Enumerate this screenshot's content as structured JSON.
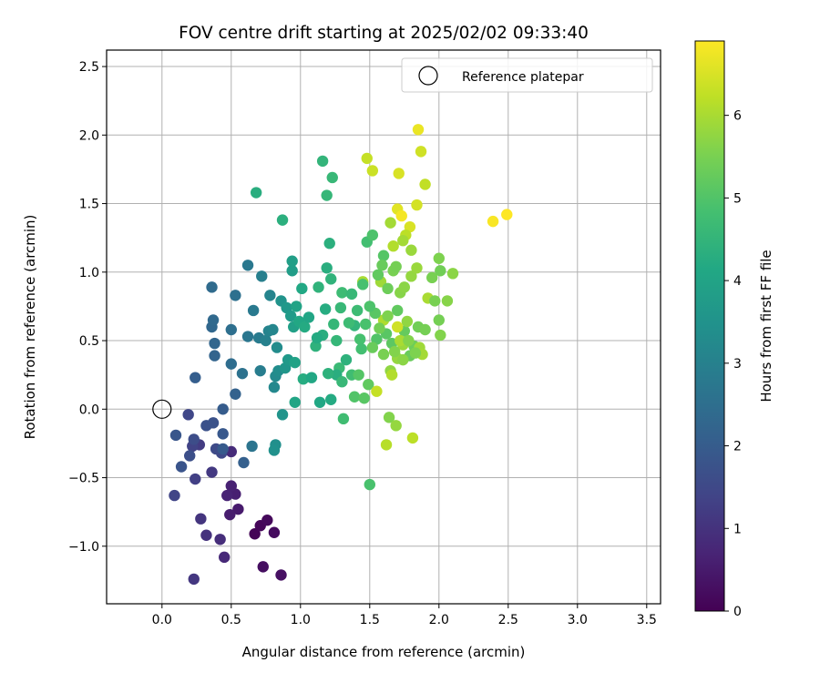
{
  "chart_data": {
    "type": "scatter",
    "title": "FOV centre drift starting at 2025/02/02 09:33:40",
    "xlabel": "Angular distance from reference (arcmin)",
    "ylabel": "Rotation from reference (arcmin)",
    "xlim": [
      -0.4,
      3.6
    ],
    "ylim": [
      -1.42,
      2.62
    ],
    "xticks": [
      0.0,
      0.5,
      1.0,
      1.5,
      2.0,
      2.5,
      3.0,
      3.5
    ],
    "xtick_labels": [
      "0.0",
      "0.5",
      "1.0",
      "1.5",
      "2.0",
      "2.5",
      "3.0",
      "3.5"
    ],
    "yticks": [
      -1.0,
      -0.5,
      0.0,
      0.5,
      1.0,
      1.5,
      2.0,
      2.5
    ],
    "ytick_labels": [
      "−1.0",
      "−0.5",
      "0.0",
      "0.5",
      "1.0",
      "1.5",
      "2.0",
      "2.5"
    ],
    "grid": true,
    "legend": {
      "position": "top-right",
      "entries": [
        "Reference platepar"
      ]
    },
    "reference_point": {
      "x": 0.0,
      "y": 0.0,
      "label": "Reference platepar"
    },
    "colorbar": {
      "label": "Hours from first FF file",
      "min": 0,
      "max": 6.9,
      "ticks": [
        0,
        1,
        2,
        3,
        4,
        5,
        6
      ],
      "tick_labels": [
        "0",
        "1",
        "2",
        "3",
        "4",
        "5",
        "6"
      ],
      "colormap": "viridis"
    },
    "points": [
      {
        "x": 0.67,
        "y": -0.91,
        "t": 0.05
      },
      {
        "x": 0.71,
        "y": -0.85,
        "t": 0.1
      },
      {
        "x": 0.76,
        "y": -0.81,
        "t": 0.15
      },
      {
        "x": 0.81,
        "y": -0.9,
        "t": 0.2
      },
      {
        "x": 0.73,
        "y": -1.15,
        "t": 0.25
      },
      {
        "x": 0.86,
        "y": -1.21,
        "t": 0.3
      },
      {
        "x": 0.55,
        "y": -0.73,
        "t": 0.5
      },
      {
        "x": 0.49,
        "y": -0.77,
        "t": 0.55
      },
      {
        "x": 0.53,
        "y": -0.62,
        "t": 0.6
      },
      {
        "x": 0.5,
        "y": -0.56,
        "t": 0.65
      },
      {
        "x": 0.47,
        "y": -0.63,
        "t": 0.7
      },
      {
        "x": 0.45,
        "y": -1.08,
        "t": 0.8
      },
      {
        "x": 0.5,
        "y": -0.31,
        "t": 0.85
      },
      {
        "x": 0.42,
        "y": -0.95,
        "t": 0.9
      },
      {
        "x": 0.32,
        "y": -0.92,
        "t": 1.0
      },
      {
        "x": 0.28,
        "y": -0.8,
        "t": 1.05
      },
      {
        "x": 0.23,
        "y": -1.24,
        "t": 1.1
      },
      {
        "x": 0.36,
        "y": -0.46,
        "t": 1.15
      },
      {
        "x": 0.27,
        "y": -0.26,
        "t": 1.2
      },
      {
        "x": 0.24,
        "y": -0.51,
        "t": 1.3
      },
      {
        "x": 0.22,
        "y": -0.27,
        "t": 1.35
      },
      {
        "x": 0.09,
        "y": -0.63,
        "t": 1.4
      },
      {
        "x": 0.19,
        "y": -0.04,
        "t": 1.45
      },
      {
        "x": 0.43,
        "y": -0.32,
        "t": 1.5
      },
      {
        "x": 0.39,
        "y": -0.29,
        "t": 1.55
      },
      {
        "x": 0.23,
        "y": -0.22,
        "t": 1.6
      },
      {
        "x": 0.2,
        "y": -0.34,
        "t": 1.65
      },
      {
        "x": 0.32,
        "y": -0.12,
        "t": 1.7
      },
      {
        "x": 0.37,
        "y": -0.1,
        "t": 1.75
      },
      {
        "x": 0.14,
        "y": -0.42,
        "t": 1.8
      },
      {
        "x": 0.1,
        "y": -0.19,
        "t": 1.85
      },
      {
        "x": 0.44,
        "y": -0.18,
        "t": 1.9
      },
      {
        "x": 0.44,
        "y": -0.29,
        "t": 1.95
      },
      {
        "x": 0.44,
        "y": 0.0,
        "t": 2.0
      },
      {
        "x": 0.24,
        "y": 0.23,
        "t": 2.05
      },
      {
        "x": 0.59,
        "y": -0.39,
        "t": 2.1
      },
      {
        "x": 0.53,
        "y": 0.11,
        "t": 2.15
      },
      {
        "x": 0.38,
        "y": 0.39,
        "t": 2.2
      },
      {
        "x": 0.38,
        "y": 0.48,
        "t": 2.25
      },
      {
        "x": 0.36,
        "y": 0.6,
        "t": 2.3
      },
      {
        "x": 0.37,
        "y": 0.65,
        "t": 2.35
      },
      {
        "x": 0.36,
        "y": 0.89,
        "t": 2.4
      },
      {
        "x": 0.5,
        "y": 0.33,
        "t": 2.45
      },
      {
        "x": 0.5,
        "y": 0.58,
        "t": 2.5
      },
      {
        "x": 0.53,
        "y": 0.83,
        "t": 2.55
      },
      {
        "x": 0.58,
        "y": 0.26,
        "t": 2.6
      },
      {
        "x": 0.65,
        "y": -0.27,
        "t": 2.65
      },
      {
        "x": 0.62,
        "y": 0.53,
        "t": 2.7
      },
      {
        "x": 0.62,
        "y": 1.05,
        "t": 2.75
      },
      {
        "x": 0.66,
        "y": 0.72,
        "t": 2.8
      },
      {
        "x": 0.7,
        "y": 0.52,
        "t": 2.85
      },
      {
        "x": 0.71,
        "y": 0.28,
        "t": 2.9
      },
      {
        "x": 0.72,
        "y": 0.97,
        "t": 2.95
      },
      {
        "x": 0.75,
        "y": 0.5,
        "t": 3.0
      },
      {
        "x": 0.77,
        "y": 0.57,
        "t": 3.05
      },
      {
        "x": 0.78,
        "y": 0.83,
        "t": 3.1
      },
      {
        "x": 0.8,
        "y": 0.58,
        "t": 3.15
      },
      {
        "x": 0.81,
        "y": 0.16,
        "t": 3.2
      },
      {
        "x": 0.82,
        "y": 0.24,
        "t": 3.25
      },
      {
        "x": 0.83,
        "y": 0.45,
        "t": 3.3
      },
      {
        "x": 0.84,
        "y": 0.28,
        "t": 3.35
      },
      {
        "x": 0.82,
        "y": -0.26,
        "t": 3.4
      },
      {
        "x": 0.81,
        "y": -0.3,
        "t": 3.45
      },
      {
        "x": 0.86,
        "y": 0.79,
        "t": 3.5
      },
      {
        "x": 0.87,
        "y": -0.04,
        "t": 3.55
      },
      {
        "x": 0.89,
        "y": 0.3,
        "t": 3.6
      },
      {
        "x": 0.9,
        "y": 0.74,
        "t": 3.65
      },
      {
        "x": 0.91,
        "y": 0.36,
        "t": 3.7
      },
      {
        "x": 0.93,
        "y": 0.68,
        "t": 3.75
      },
      {
        "x": 0.94,
        "y": 1.01,
        "t": 3.8
      },
      {
        "x": 0.94,
        "y": 1.08,
        "t": 3.85
      },
      {
        "x": 0.95,
        "y": 0.6,
        "t": 3.9
      },
      {
        "x": 0.96,
        "y": 0.34,
        "t": 3.95
      },
      {
        "x": 0.97,
        "y": 0.75,
        "t": 4.0
      },
      {
        "x": 0.96,
        "y": 0.05,
        "t": 4.05
      },
      {
        "x": 0.99,
        "y": 0.64,
        "t": 4.1
      },
      {
        "x": 1.01,
        "y": 0.88,
        "t": 4.15
      },
      {
        "x": 1.03,
        "y": 0.6,
        "t": 4.2
      },
      {
        "x": 1.02,
        "y": 0.22,
        "t": 4.25
      },
      {
        "x": 0.68,
        "y": 1.58,
        "t": 4.3
      },
      {
        "x": 0.87,
        "y": 1.38,
        "t": 4.35
      },
      {
        "x": 1.11,
        "y": 0.46,
        "t": 4.4
      },
      {
        "x": 1.13,
        "y": 0.89,
        "t": 4.45
      },
      {
        "x": 1.16,
        "y": 1.81,
        "t": 4.5
      },
      {
        "x": 1.19,
        "y": 1.56,
        "t": 4.55
      },
      {
        "x": 1.23,
        "y": 1.69,
        "t": 4.6
      },
      {
        "x": 1.28,
        "y": 0.3,
        "t": 4.65
      },
      {
        "x": 1.3,
        "y": 0.85,
        "t": 4.7
      },
      {
        "x": 1.31,
        "y": -0.07,
        "t": 4.75
      },
      {
        "x": 1.48,
        "y": 1.22,
        "t": 4.8
      },
      {
        "x": 1.43,
        "y": 0.51,
        "t": 4.85
      },
      {
        "x": 1.5,
        "y": -0.55,
        "t": 4.9
      },
      {
        "x": 1.52,
        "y": 1.27,
        "t": 4.95
      },
      {
        "x": 1.55,
        "y": 0.51,
        "t": 5.0
      },
      {
        "x": 1.6,
        "y": 1.12,
        "t": 5.05
      },
      {
        "x": 1.62,
        "y": 0.55,
        "t": 5.1
      },
      {
        "x": 1.66,
        "y": 0.48,
        "t": 5.15
      },
      {
        "x": 1.7,
        "y": 0.72,
        "t": 5.2
      },
      {
        "x": 1.75,
        "y": 0.57,
        "t": 5.25
      },
      {
        "x": 1.79,
        "y": 0.39,
        "t": 5.3
      },
      {
        "x": 1.82,
        "y": 0.46,
        "t": 5.35
      },
      {
        "x": 1.85,
        "y": 0.6,
        "t": 5.4
      },
      {
        "x": 1.9,
        "y": 0.58,
        "t": 5.45
      },
      {
        "x": 1.95,
        "y": 0.96,
        "t": 5.5
      },
      {
        "x": 2.0,
        "y": 1.1,
        "t": 5.55
      },
      {
        "x": 2.01,
        "y": 0.54,
        "t": 5.6
      },
      {
        "x": 2.06,
        "y": 0.79,
        "t": 5.65
      },
      {
        "x": 2.1,
        "y": 0.99,
        "t": 5.7
      },
      {
        "x": 1.65,
        "y": 0.28,
        "t": 5.75
      },
      {
        "x": 1.7,
        "y": 0.37,
        "t": 5.8
      },
      {
        "x": 1.74,
        "y": 0.47,
        "t": 5.85
      },
      {
        "x": 1.58,
        "y": 0.93,
        "t": 5.9
      },
      {
        "x": 1.65,
        "y": 1.36,
        "t": 5.95
      },
      {
        "x": 1.45,
        "y": 0.93,
        "t": 6.0
      },
      {
        "x": 1.6,
        "y": 0.65,
        "t": 6.05
      },
      {
        "x": 1.67,
        "y": 1.19,
        "t": 6.1
      },
      {
        "x": 1.62,
        "y": -0.26,
        "t": 6.15
      },
      {
        "x": 1.81,
        "y": -0.21,
        "t": 6.2
      },
      {
        "x": 1.9,
        "y": 1.64,
        "t": 6.25
      },
      {
        "x": 1.48,
        "y": 1.83,
        "t": 6.3
      },
      {
        "x": 1.52,
        "y": 1.74,
        "t": 6.35
      },
      {
        "x": 1.87,
        "y": 1.88,
        "t": 6.4
      },
      {
        "x": 1.71,
        "y": 1.72,
        "t": 6.5
      },
      {
        "x": 1.7,
        "y": 1.46,
        "t": 6.6
      },
      {
        "x": 1.85,
        "y": 2.04,
        "t": 6.7
      },
      {
        "x": 1.73,
        "y": 1.41,
        "t": 6.8
      },
      {
        "x": 2.39,
        "y": 1.37,
        "t": 6.85
      },
      {
        "x": 2.49,
        "y": 1.42,
        "t": 6.9
      },
      {
        "x": 1.39,
        "y": 0.61,
        "t": 4.5
      },
      {
        "x": 1.37,
        "y": 0.84,
        "t": 4.6
      },
      {
        "x": 1.41,
        "y": 0.72,
        "t": 4.7
      },
      {
        "x": 1.44,
        "y": 0.44,
        "t": 4.8
      },
      {
        "x": 1.47,
        "y": 0.62,
        "t": 4.9
      },
      {
        "x": 1.33,
        "y": 0.36,
        "t": 4.4
      },
      {
        "x": 1.26,
        "y": 0.25,
        "t": 4.3
      },
      {
        "x": 1.22,
        "y": 0.07,
        "t": 4.2
      },
      {
        "x": 1.14,
        "y": 0.05,
        "t": 4.1
      },
      {
        "x": 1.18,
        "y": 0.73,
        "t": 4.25
      },
      {
        "x": 1.21,
        "y": 1.21,
        "t": 4.35
      },
      {
        "x": 1.22,
        "y": 0.95,
        "t": 4.45
      },
      {
        "x": 1.24,
        "y": 0.62,
        "t": 4.55
      },
      {
        "x": 1.3,
        "y": 0.2,
        "t": 4.6
      },
      {
        "x": 1.35,
        "y": 0.63,
        "t": 4.7
      },
      {
        "x": 1.37,
        "y": 0.25,
        "t": 4.75
      },
      {
        "x": 1.39,
        "y": 0.09,
        "t": 5.0
      },
      {
        "x": 1.42,
        "y": 0.25,
        "t": 5.05
      },
      {
        "x": 1.46,
        "y": 0.08,
        "t": 5.1
      },
      {
        "x": 1.49,
        "y": 0.18,
        "t": 5.2
      },
      {
        "x": 1.52,
        "y": 0.45,
        "t": 5.3
      },
      {
        "x": 1.55,
        "y": 0.13,
        "t": 6.3
      },
      {
        "x": 1.57,
        "y": 0.59,
        "t": 5.4
      },
      {
        "x": 1.6,
        "y": 0.4,
        "t": 5.5
      },
      {
        "x": 1.63,
        "y": 0.68,
        "t": 5.55
      },
      {
        "x": 1.66,
        "y": 0.25,
        "t": 6.1
      },
      {
        "x": 1.68,
        "y": 0.42,
        "t": 5.6
      },
      {
        "x": 1.72,
        "y": 0.85,
        "t": 5.65
      },
      {
        "x": 1.75,
        "y": 0.89,
        "t": 5.7
      },
      {
        "x": 1.77,
        "y": 0.64,
        "t": 5.75
      },
      {
        "x": 1.8,
        "y": 0.97,
        "t": 5.8
      },
      {
        "x": 1.84,
        "y": 1.03,
        "t": 5.85
      },
      {
        "x": 1.86,
        "y": 0.45,
        "t": 5.9
      },
      {
        "x": 1.88,
        "y": 0.4,
        "t": 5.95
      },
      {
        "x": 1.92,
        "y": 0.81,
        "t": 6.0
      },
      {
        "x": 1.97,
        "y": 0.79,
        "t": 5.5
      },
      {
        "x": 2.0,
        "y": 0.65,
        "t": 5.45
      },
      {
        "x": 2.01,
        "y": 1.01,
        "t": 5.4
      },
      {
        "x": 1.79,
        "y": 1.33,
        "t": 6.5
      },
      {
        "x": 1.76,
        "y": 1.27,
        "t": 6.2
      },
      {
        "x": 1.74,
        "y": 1.23,
        "t": 5.95
      },
      {
        "x": 1.8,
        "y": 1.16,
        "t": 5.85
      },
      {
        "x": 1.84,
        "y": 1.49,
        "t": 6.45
      },
      {
        "x": 1.59,
        "y": 1.05,
        "t": 5.3
      },
      {
        "x": 1.56,
        "y": 0.98,
        "t": 5.2
      },
      {
        "x": 1.54,
        "y": 0.7,
        "t": 5.1
      },
      {
        "x": 1.64,
        "y": -0.06,
        "t": 5.6
      },
      {
        "x": 1.69,
        "y": -0.12,
        "t": 5.8
      },
      {
        "x": 1.7,
        "y": 0.6,
        "t": 6.4
      },
      {
        "x": 1.72,
        "y": 0.5,
        "t": 6.0
      },
      {
        "x": 1.74,
        "y": 0.36,
        "t": 5.7
      },
      {
        "x": 1.78,
        "y": 0.5,
        "t": 5.6
      },
      {
        "x": 1.83,
        "y": 0.41,
        "t": 5.55
      },
      {
        "x": 1.67,
        "y": 1.01,
        "t": 5.5
      },
      {
        "x": 1.69,
        "y": 1.04,
        "t": 5.45
      },
      {
        "x": 1.63,
        "y": 0.88,
        "t": 5.35
      },
      {
        "x": 1.5,
        "y": 0.75,
        "t": 4.95
      },
      {
        "x": 1.45,
        "y": 0.91,
        "t": 4.85
      },
      {
        "x": 1.29,
        "y": 0.74,
        "t": 4.6
      },
      {
        "x": 1.26,
        "y": 0.5,
        "t": 4.55
      },
      {
        "x": 1.2,
        "y": 0.26,
        "t": 4.4
      },
      {
        "x": 1.16,
        "y": 0.54,
        "t": 4.3
      },
      {
        "x": 1.12,
        "y": 0.52,
        "t": 4.2
      },
      {
        "x": 1.08,
        "y": 0.23,
        "t": 4.1
      },
      {
        "x": 1.06,
        "y": 0.67,
        "t": 4.05
      },
      {
        "x": 1.19,
        "y": 1.03,
        "t": 4.3
      }
    ]
  }
}
